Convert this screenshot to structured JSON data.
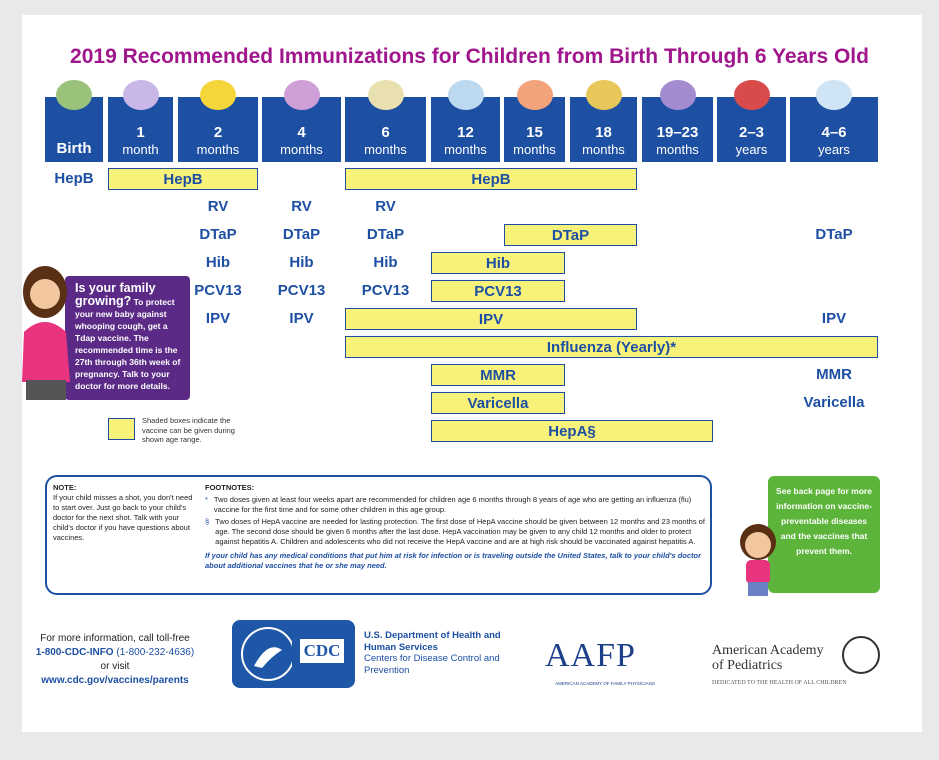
{
  "title": "2019 Recommended Immunizations for Children from Birth Through 6 Years Old",
  "ages": [
    {
      "label": "Birth"
    },
    {
      "number": "1",
      "unit": "month"
    },
    {
      "number": "2",
      "unit": "months"
    },
    {
      "number": "4",
      "unit": "months"
    },
    {
      "number": "6",
      "unit": "months"
    },
    {
      "number": "12",
      "unit": "months"
    },
    {
      "number": "15",
      "unit": "months"
    },
    {
      "number": "18",
      "unit": "months"
    },
    {
      "number": "19–23",
      "unit": "months"
    },
    {
      "number": "2–3",
      "unit": "years"
    },
    {
      "number": "4–6",
      "unit": "years"
    }
  ],
  "schedule": [
    {
      "items": [
        {
          "text": "HepB",
          "ages": [
            0,
            0
          ],
          "shaded": false
        },
        {
          "text": "HepB",
          "ages": [
            1,
            2
          ],
          "shaded": true
        },
        {
          "text": "HepB",
          "ages": [
            4,
            7
          ],
          "shaded": true
        }
      ]
    },
    {
      "items": [
        {
          "text": "RV",
          "ages": [
            2,
            2
          ],
          "shaded": false
        },
        {
          "text": "RV",
          "ages": [
            3,
            3
          ],
          "shaded": false
        },
        {
          "text": "RV",
          "ages": [
            4,
            4
          ],
          "shaded": false
        }
      ]
    },
    {
      "items": [
        {
          "text": "DTaP",
          "ages": [
            2,
            2
          ],
          "shaded": false
        },
        {
          "text": "DTaP",
          "ages": [
            3,
            3
          ],
          "shaded": false
        },
        {
          "text": "DTaP",
          "ages": [
            4,
            4
          ],
          "shaded": false
        },
        {
          "text": "DTaP",
          "ages": [
            6,
            7
          ],
          "shaded": true
        },
        {
          "text": "DTaP",
          "ages": [
            10,
            10
          ],
          "shaded": false
        }
      ]
    },
    {
      "items": [
        {
          "text": "Hib",
          "ages": [
            2,
            2
          ],
          "shaded": false
        },
        {
          "text": "Hib",
          "ages": [
            3,
            3
          ],
          "shaded": false
        },
        {
          "text": "Hib",
          "ages": [
            4,
            4
          ],
          "shaded": false
        },
        {
          "text": "Hib",
          "ages": [
            5,
            6
          ],
          "shaded": true
        }
      ]
    },
    {
      "items": [
        {
          "text": "PCV13",
          "ages": [
            2,
            2
          ],
          "shaded": false
        },
        {
          "text": "PCV13",
          "ages": [
            3,
            3
          ],
          "shaded": false
        },
        {
          "text": "PCV13",
          "ages": [
            4,
            4
          ],
          "shaded": false
        },
        {
          "text": "PCV13",
          "ages": [
            5,
            6
          ],
          "shaded": true
        }
      ]
    },
    {
      "items": [
        {
          "text": "IPV",
          "ages": [
            2,
            2
          ],
          "shaded": false
        },
        {
          "text": "IPV",
          "ages": [
            3,
            3
          ],
          "shaded": false
        },
        {
          "text": "IPV",
          "ages": [
            4,
            7
          ],
          "shaded": true
        },
        {
          "text": "IPV",
          "ages": [
            10,
            10
          ],
          "shaded": false
        }
      ]
    },
    {
      "items": [
        {
          "text": "Influenza (Yearly)*",
          "ages": [
            4,
            10
          ],
          "shaded": true
        }
      ]
    },
    {
      "items": [
        {
          "text": "MMR",
          "ages": [
            5,
            6
          ],
          "shaded": true
        },
        {
          "text": "MMR",
          "ages": [
            10,
            10
          ],
          "shaded": false
        }
      ]
    },
    {
      "items": [
        {
          "text": "Varicella",
          "ages": [
            5,
            6
          ],
          "shaded": true
        },
        {
          "text": "Varicella",
          "ages": [
            10,
            10
          ],
          "shaded": false
        }
      ]
    },
    {
      "items": [
        {
          "text": "HepA§",
          "ages": [
            5,
            8
          ],
          "shaded": true
        }
      ]
    }
  ],
  "callout": {
    "heading": "Is your family growing?",
    "text": "To protect your new baby against whooping cough, get a Tdap vaccine. The recommended time is the 27th through 36th week of pregnancy. Talk to your doctor for more details."
  },
  "legend": "Shaded boxes indicate the vaccine can be given during shown age range.",
  "note": {
    "heading": "NOTE:",
    "text": "If your child misses a shot, you don't need to start over. Just go back to your child's doctor for the next shot. Talk with your child's doctor if you have questions about vaccines."
  },
  "footnotes": {
    "heading": "FOOTNOTES:",
    "items": [
      {
        "symbol": "*",
        "text": "Two doses given at least four weeks apart are recommended for children age 6 months through 8 years of age who are getting an influenza (flu) vaccine for the first time and for some other children in this age group."
      },
      {
        "symbol": "§",
        "text": "Two doses of HepA vaccine are needed for lasting protection. The first dose of HepA vaccine should be given between 12 months and 23 months of age. The second dose should be given 6 months after the last dose. HepA vaccination may be given to any child 12 months and older to protect against hepatitis A. Children and adolescents who did not receive the HepA vaccine and are at high risk should be vaccinated against hepatitis A."
      }
    ],
    "emphasis": "If your child has any medical conditions that put him at risk for infection or is traveling outside the United States, talk to your child's doctor about additional vaccines that he or she may need."
  },
  "side_note": "See back page for more information on vaccine-preventable diseases and the vaccines that prevent them.",
  "contact": {
    "intro": "For more information, call toll-free",
    "phone": "1-800-CDC-INFO",
    "phone_digits": "(1-800-232-4636)",
    "or": "or visit",
    "url": "www.cdc.gov/vaccines/parents"
  },
  "agencies": {
    "cdc": "CDC",
    "hhs": "U.S. Department of Health and Human Services",
    "cdc_name": "Centers for Disease Control and Prevention",
    "aafp": "AAFP",
    "aafp_name": "AMERICAN ACADEMY OF FAMILY PHYSICIANS",
    "aap": "American Academy of Pediatrics",
    "aap_tagline": "DEDICATED TO THE HEALTH OF ALL CHILDREN"
  }
}
